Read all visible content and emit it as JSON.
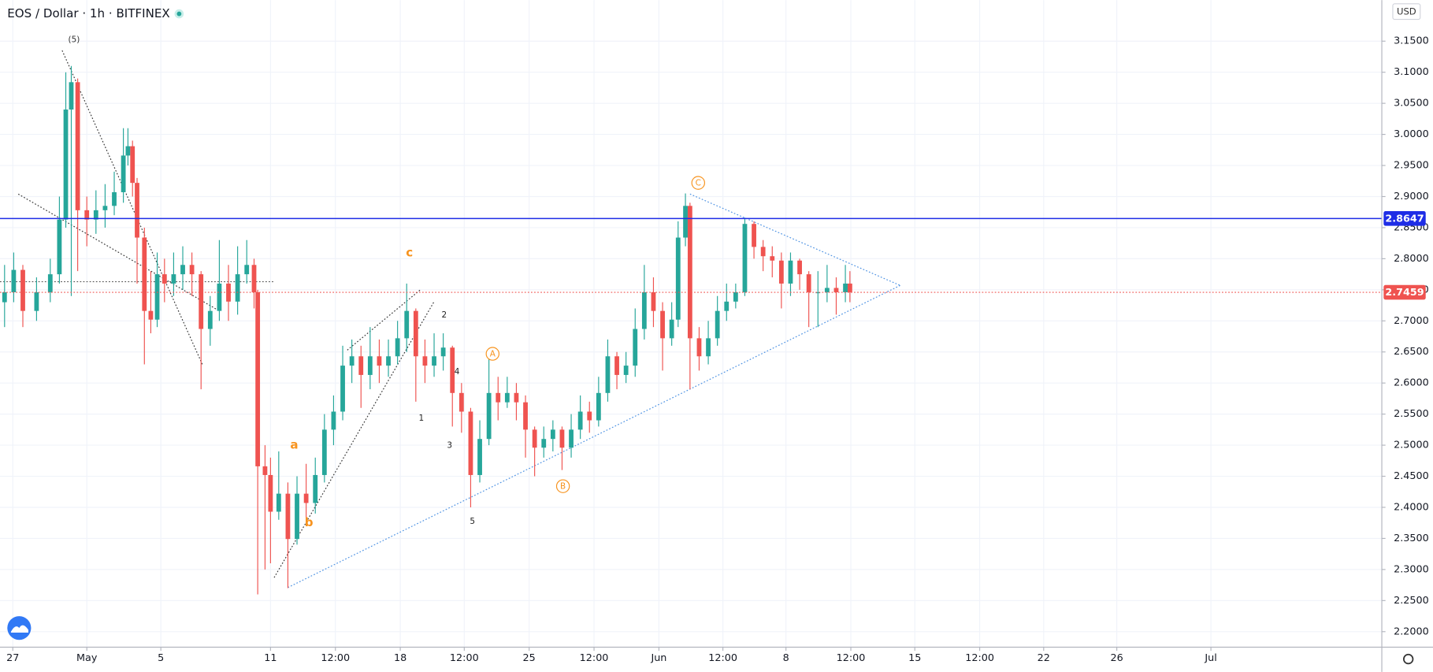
{
  "chart_data": {
    "type": "candlestick",
    "title": "EOS / Dollar · 1h · BITFINEX",
    "currency": "USD",
    "x": [
      5,
      15,
      25,
      40,
      55,
      65,
      72,
      78,
      85,
      95,
      105,
      115,
      125,
      135,
      140,
      145,
      150,
      158,
      165,
      172,
      180,
      190,
      200,
      210,
      220,
      230,
      240,
      250,
      260,
      270,
      278,
      282,
      290,
      296,
      305,
      315,
      325,
      335,
      345,
      355,
      365,
      375,
      385,
      395,
      405,
      415,
      425,
      435,
      445,
      455,
      465,
      475,
      485,
      495,
      505,
      515,
      525,
      535,
      545,
      555,
      565,
      575,
      585,
      595,
      605,
      615,
      625,
      635,
      645,
      655,
      665,
      675,
      685,
      695,
      705,
      715,
      725,
      735,
      742,
      750,
      755,
      765,
      775,
      785,
      795,
      805,
      815,
      825,
      835,
      845,
      855,
      865,
      875,
      885,
      895,
      905,
      915,
      925,
      930
    ],
    "open": [
      2.73,
      2.746,
      2.782,
      2.716,
      2.746,
      2.775,
      2.863,
      3.04,
      3.084,
      2.878,
      2.863,
      2.878,
      2.885,
      2.907,
      2.966,
      2.981,
      2.922,
      2.834,
      2.716,
      2.702,
      2.775,
      2.76,
      2.775,
      2.79,
      2.775,
      2.687,
      2.716,
      2.76,
      2.731,
      2.775,
      2.79,
      2.746,
      2.466,
      2.452,
      2.393,
      2.422,
      2.349,
      2.422,
      2.407,
      2.452,
      2.525,
      2.554,
      2.628,
      2.643,
      2.613,
      2.643,
      2.628,
      2.643,
      2.672,
      2.716,
      2.643,
      2.628,
      2.643,
      2.657,
      2.584,
      2.554,
      2.452,
      2.51,
      2.584,
      2.569,
      2.584,
      2.569,
      2.525,
      2.496,
      2.51,
      2.525,
      2.496,
      2.525,
      2.554,
      2.54,
      2.584,
      2.643,
      2.613,
      2.628,
      2.687,
      2.746,
      2.716,
      2.672,
      2.702,
      2.834,
      2.885,
      2.672,
      2.643,
      2.672,
      2.716,
      2.731,
      2.746,
      2.856,
      2.819,
      2.804,
      2.797,
      2.76,
      2.797,
      2.775,
      2.746,
      2.746,
      2.753,
      2.746,
      2.76
    ],
    "high": [
      2.79,
      2.81,
      2.79,
      2.77,
      2.8,
      2.9,
      3.1,
      3.11,
      3.09,
      2.9,
      2.91,
      2.92,
      2.94,
      3.01,
      3.01,
      2.99,
      2.93,
      2.85,
      2.78,
      2.81,
      2.8,
      2.81,
      2.82,
      2.81,
      2.78,
      2.74,
      2.83,
      2.79,
      2.82,
      2.83,
      2.8,
      2.75,
      2.5,
      2.48,
      2.49,
      2.44,
      2.45,
      2.47,
      2.48,
      2.55,
      2.58,
      2.66,
      2.67,
      2.66,
      2.69,
      2.67,
      2.67,
      2.7,
      2.76,
      2.72,
      2.67,
      2.68,
      2.68,
      2.66,
      2.6,
      2.56,
      2.54,
      2.64,
      2.61,
      2.61,
      2.6,
      2.58,
      2.53,
      2.53,
      2.54,
      2.53,
      2.55,
      2.58,
      2.57,
      2.61,
      2.67,
      2.65,
      2.65,
      2.72,
      2.79,
      2.77,
      2.73,
      2.73,
      2.86,
      2.905,
      2.89,
      2.69,
      2.7,
      2.74,
      2.76,
      2.76,
      2.866,
      2.86,
      2.83,
      2.82,
      2.81,
      2.81,
      2.8,
      2.78,
      2.78,
      2.79,
      2.77,
      2.79,
      2.78
    ],
    "low": [
      2.69,
      2.73,
      2.69,
      2.7,
      2.73,
      2.76,
      2.85,
      2.74,
      2.78,
      2.82,
      2.84,
      2.85,
      2.87,
      2.89,
      2.95,
      2.9,
      2.76,
      2.63,
      2.68,
      2.69,
      2.73,
      2.74,
      2.75,
      2.74,
      2.59,
      2.66,
      2.7,
      2.7,
      2.71,
      2.76,
      2.72,
      2.26,
      2.3,
      2.31,
      2.38,
      2.27,
      2.34,
      2.38,
      2.39,
      2.44,
      2.5,
      2.54,
      2.6,
      2.56,
      2.59,
      2.6,
      2.61,
      2.63,
      2.65,
      2.57,
      2.6,
      2.61,
      2.62,
      2.53,
      2.52,
      2.4,
      2.44,
      2.5,
      2.54,
      2.56,
      2.54,
      2.48,
      2.45,
      2.48,
      2.49,
      2.46,
      2.48,
      2.51,
      2.52,
      2.53,
      2.57,
      2.59,
      2.6,
      2.61,
      2.67,
      2.69,
      2.62,
      2.66,
      2.69,
      2.82,
      2.59,
      2.62,
      2.63,
      2.66,
      2.7,
      2.72,
      2.74,
      2.8,
      2.78,
      2.77,
      2.72,
      2.74,
      2.75,
      2.69,
      2.69,
      2.73,
      2.71,
      2.73,
      2.73
    ],
    "close": [
      2.746,
      2.782,
      2.716,
      2.746,
      2.775,
      2.863,
      3.04,
      3.084,
      2.878,
      2.863,
      2.878,
      2.885,
      2.907,
      2.966,
      2.981,
      2.922,
      2.834,
      2.716,
      2.702,
      2.775,
      2.76,
      2.775,
      2.79,
      2.775,
      2.687,
      2.716,
      2.76,
      2.731,
      2.775,
      2.79,
      2.746,
      2.466,
      2.452,
      2.393,
      2.422,
      2.349,
      2.422,
      2.407,
      2.452,
      2.525,
      2.554,
      2.628,
      2.643,
      2.613,
      2.643,
      2.628,
      2.643,
      2.672,
      2.716,
      2.643,
      2.628,
      2.643,
      2.657,
      2.584,
      2.554,
      2.452,
      2.51,
      2.584,
      2.569,
      2.584,
      2.569,
      2.525,
      2.496,
      2.51,
      2.525,
      2.496,
      2.525,
      2.554,
      2.54,
      2.584,
      2.643,
      2.613,
      2.628,
      2.687,
      2.746,
      2.716,
      2.672,
      2.702,
      2.834,
      2.885,
      2.672,
      2.643,
      2.672,
      2.716,
      2.731,
      2.746,
      2.856,
      2.819,
      2.804,
      2.797,
      2.76,
      2.797,
      2.775,
      2.746,
      2.746,
      2.753,
      2.746,
      2.76,
      2.746
    ],
    "up_color": "#26a69a",
    "down_color": "#ef5350",
    "xlim": [
      0,
      1512
    ],
    "ylim": [
      2.175,
      3.216
    ],
    "grid": true,
    "xticks": [
      {
        "value": 14,
        "label": "27"
      },
      {
        "value": 95,
        "label": "May"
      },
      {
        "value": 176,
        "label": "5"
      },
      {
        "value": 296,
        "label": "11"
      },
      {
        "value": 367,
        "label": "12:00"
      },
      {
        "value": 438,
        "label": "18"
      },
      {
        "value": 508,
        "label": "12:00"
      },
      {
        "value": 579,
        "label": "25"
      },
      {
        "value": 650,
        "label": "12:00"
      },
      {
        "value": 721,
        "label": "Jun"
      },
      {
        "value": 791,
        "label": "12:00"
      },
      {
        "value": 860,
        "label": "8"
      },
      {
        "value": 931,
        "label": "12:00"
      },
      {
        "value": 1001,
        "label": "15"
      },
      {
        "value": 1072,
        "label": "12:00"
      },
      {
        "value": 1142,
        "label": "22"
      },
      {
        "value": 1222,
        "label": "26"
      },
      {
        "value": 1325,
        "label": "Jul"
      }
    ],
    "yticks": [
      {
        "value": 2.2,
        "label": "2.2000"
      },
      {
        "value": 2.25,
        "label": "2.2500"
      },
      {
        "value": 2.3,
        "label": "2.3000"
      },
      {
        "value": 2.35,
        "label": "2.3500"
      },
      {
        "value": 2.4,
        "label": "2.4000"
      },
      {
        "value": 2.45,
        "label": "2.4500"
      },
      {
        "value": 2.5,
        "label": "2.5000"
      },
      {
        "value": 2.55,
        "label": "2.5500"
      },
      {
        "value": 2.6,
        "label": "2.6000"
      },
      {
        "value": 2.65,
        "label": "2.6500"
      },
      {
        "value": 2.7,
        "label": "2.7000"
      },
      {
        "value": 2.75,
        "label": "2.7500"
      },
      {
        "value": 2.8,
        "label": "2.8000"
      },
      {
        "value": 2.85,
        "label": "2.8500"
      },
      {
        "value": 2.9,
        "label": "2.9000"
      },
      {
        "value": 2.95,
        "label": "2.9500"
      },
      {
        "value": 3.0,
        "label": "3.0000"
      },
      {
        "value": 3.05,
        "label": "3.0500"
      },
      {
        "value": 3.1,
        "label": "3.1000"
      },
      {
        "value": 3.15,
        "label": "3.1500"
      }
    ],
    "hlines": [
      {
        "value": 2.8647,
        "color": "#1e2de6",
        "dotted": false
      },
      {
        "value": 2.7459,
        "color": "#ef5350",
        "dotted": true
      }
    ],
    "drawings": [
      {
        "points": [
          [
            68,
            3.135
          ],
          [
            222,
            2.628
          ]
        ],
        "color": "#333333"
      },
      {
        "points": [
          [
            20,
            2.904
          ],
          [
            240,
            2.716
          ]
        ],
        "color": "#333333"
      },
      {
        "points": [
          [
            300,
            2.287
          ],
          [
            475,
            2.731
          ]
        ],
        "color": "#333333"
      },
      {
        "points": [
          [
            380,
            2.653
          ],
          [
            460,
            2.75
          ]
        ],
        "color": "#333333"
      },
      {
        "points": [
          [
            315,
            2.271
          ],
          [
            985,
            2.757
          ]
        ],
        "color": "#4a90e2"
      },
      {
        "points": [
          [
            755,
            2.904
          ],
          [
            985,
            2.757
          ]
        ],
        "color": "#4a90e2"
      },
      {
        "points": [
          [
            0,
            2.763
          ],
          [
            300,
            2.763
          ]
        ],
        "color": "#555555"
      }
    ],
    "annotations": [
      {
        "text": "(5)",
        "x": 81,
        "y": 3.153,
        "color": "#333333",
        "circled": false
      },
      {
        "text": "a",
        "x": 322,
        "y": 2.501,
        "color": "#f7931e",
        "circled": false
      },
      {
        "text": "b",
        "x": 338,
        "y": 2.376,
        "color": "#f7931e",
        "circled": false
      },
      {
        "text": "c",
        "x": 448,
        "y": 2.81,
        "color": "#f7931e",
        "circled": false
      },
      {
        "text": "1",
        "x": 461,
        "y": 2.544,
        "color": "#222222",
        "circled": false
      },
      {
        "text": "2",
        "x": 486,
        "y": 2.71,
        "color": "#222222",
        "circled": false
      },
      {
        "text": "3",
        "x": 492,
        "y": 2.5,
        "color": "#222222",
        "circled": false
      },
      {
        "text": "4",
        "x": 500,
        "y": 2.619,
        "color": "#222222",
        "circled": false
      },
      {
        "text": "5",
        "x": 517,
        "y": 2.378,
        "color": "#222222",
        "circled": false
      },
      {
        "text": "A",
        "x": 539,
        "y": 2.647,
        "color": "#f7931e",
        "circled": true
      },
      {
        "text": "B",
        "x": 616,
        "y": 2.434,
        "color": "#f7931e",
        "circled": true
      },
      {
        "text": "C",
        "x": 764,
        "y": 2.922,
        "color": "#f7931e",
        "circled": true
      }
    ]
  }
}
